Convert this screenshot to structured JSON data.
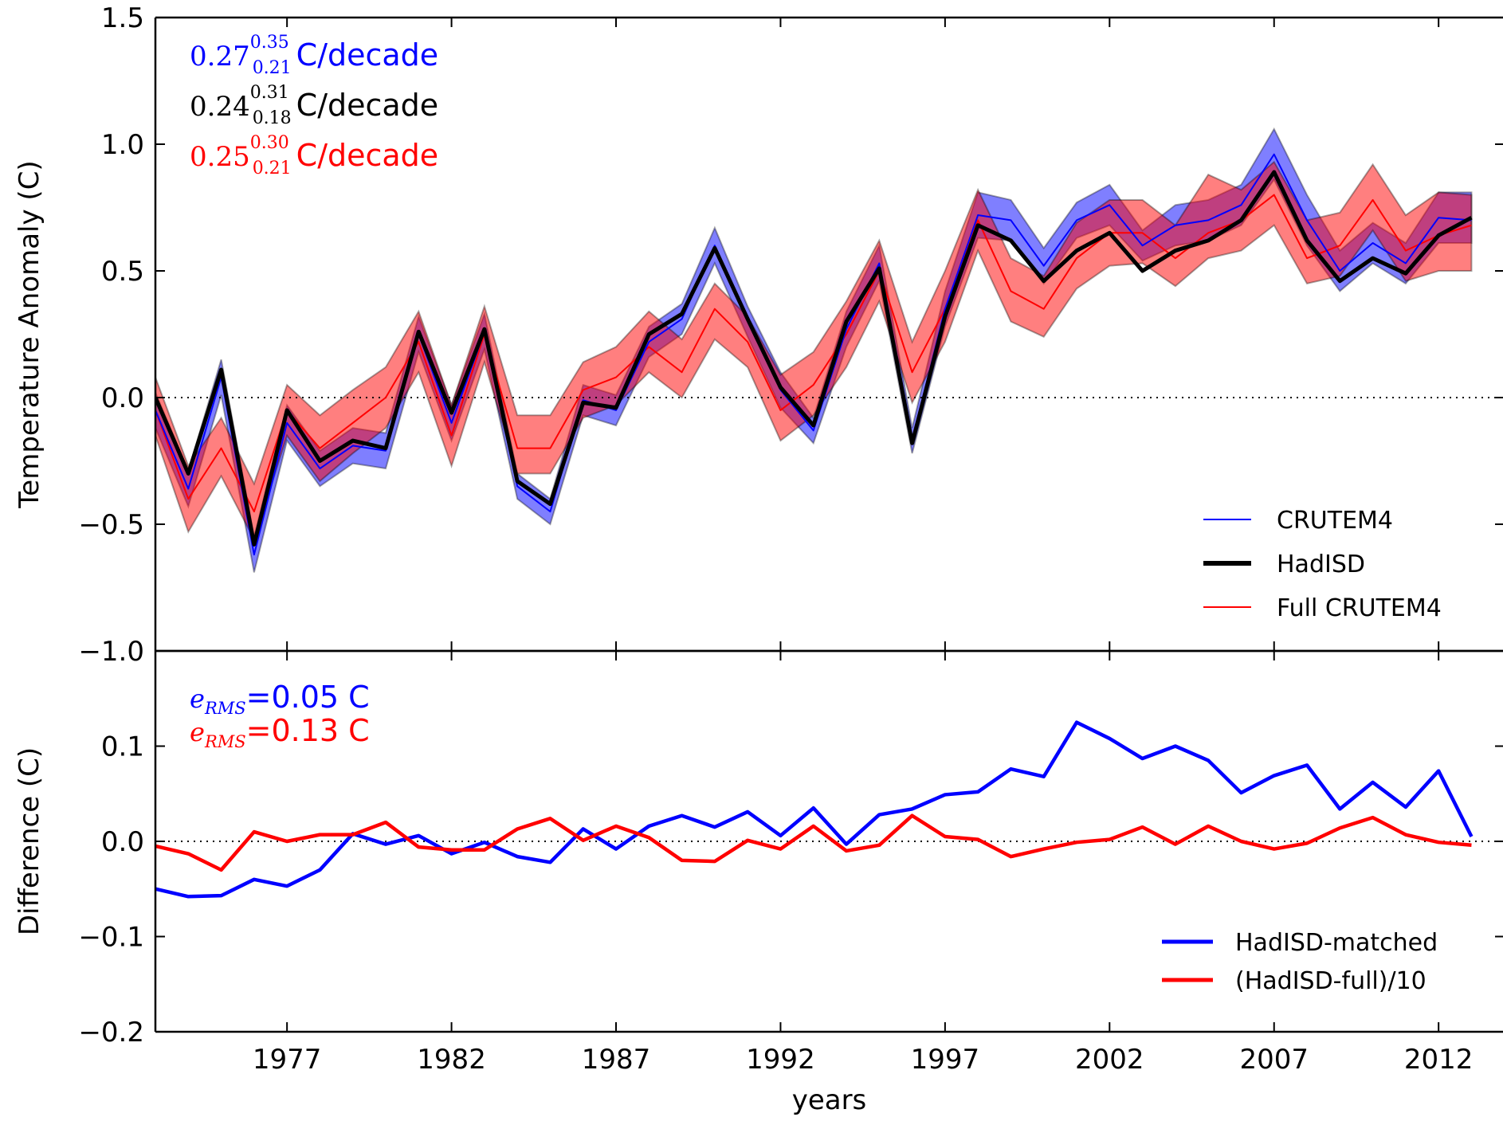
{
  "chart_data": [
    {
      "type": "line",
      "panel": "top",
      "ylabel": "Temperature Anomaly (C)",
      "xlabel": "",
      "ylim": [
        -1.0,
        1.5
      ],
      "yticks": [
        -1.0,
        -0.5,
        0.0,
        0.5,
        1.0,
        1.5
      ],
      "ytick_labels": [
        "−1.0",
        "−0.5",
        "0.0",
        "0.5",
        "1.0",
        "1.5"
      ],
      "xlim": [
        1973,
        2014.2
      ],
      "zero_line": true,
      "legend": {
        "placement": "lower-right",
        "entries": [
          {
            "label": "CRUTEM4",
            "color": "#0000ff",
            "style": "thin"
          },
          {
            "label": "HadISD",
            "color": "#000000",
            "style": "thick"
          },
          {
            "label": "Full CRUTEM4",
            "color": "#ff0000",
            "style": "thin"
          }
        ]
      },
      "annotations": [
        {
          "value": "0.27",
          "sup": "0.35",
          "sub": "0.21",
          "unit": "C/decade",
          "color": "#0000ff"
        },
        {
          "value": "0.24",
          "sup": "0.31",
          "sub": "0.18",
          "unit": "C/decade",
          "color": "#000000"
        },
        {
          "value": "0.25",
          "sup": "0.30",
          "sub": "0.21",
          "unit": "C/decade",
          "color": "#ff0000"
        }
      ],
      "x": [
        1973,
        1974,
        1975,
        1976,
        1977,
        1978,
        1979,
        1980,
        1981,
        1982,
        1983,
        1984,
        1985,
        1986,
        1987,
        1988,
        1989,
        1990,
        1991,
        1992,
        1993,
        1994,
        1995,
        1996,
        1997,
        1998,
        1999,
        2000,
        2001,
        2002,
        2003,
        2004,
        2005,
        2006,
        2007,
        2008,
        2009,
        2010,
        2011,
        2012,
        2013
      ],
      "series": [
        {
          "name": "CRUTEM4",
          "color": "#0000ff",
          "band_color": "#0000ff",
          "values": [
            -0.05,
            -0.36,
            0.08,
            -0.62,
            -0.1,
            -0.28,
            -0.19,
            -0.21,
            0.25,
            -0.1,
            0.26,
            -0.35,
            -0.45,
            -0.01,
            -0.05,
            0.22,
            0.31,
            0.6,
            0.3,
            0.03,
            -0.13,
            0.27,
            0.53,
            -0.17,
            0.35,
            0.72,
            0.7,
            0.52,
            0.7,
            0.76,
            0.6,
            0.68,
            0.7,
            0.76,
            0.96,
            0.7,
            0.5,
            0.61,
            0.53,
            0.71,
            0.7
          ],
          "lower": [
            -0.12,
            -0.43,
            0.01,
            -0.69,
            -0.17,
            -0.35,
            -0.26,
            -0.28,
            0.18,
            -0.17,
            0.19,
            -0.4,
            -0.5,
            -0.07,
            -0.11,
            0.16,
            0.25,
            0.53,
            0.24,
            -0.04,
            -0.18,
            0.2,
            0.46,
            -0.22,
            0.28,
            0.63,
            0.62,
            0.45,
            0.63,
            0.68,
            0.54,
            0.6,
            0.62,
            0.68,
            0.86,
            0.6,
            0.42,
            0.53,
            0.45,
            0.61,
            0.61
          ],
          "upper": [
            0.02,
            -0.29,
            0.15,
            -0.55,
            -0.03,
            -0.21,
            -0.12,
            -0.14,
            0.32,
            -0.03,
            0.33,
            -0.3,
            -0.4,
            0.05,
            0.01,
            0.28,
            0.37,
            0.67,
            0.36,
            0.1,
            -0.08,
            0.34,
            0.6,
            -0.12,
            0.42,
            0.81,
            0.78,
            0.59,
            0.77,
            0.84,
            0.66,
            0.76,
            0.78,
            0.84,
            1.06,
            0.8,
            0.58,
            0.69,
            0.61,
            0.81,
            0.81
          ]
        },
        {
          "name": "HadISD",
          "color": "#000000",
          "values": [
            0.0,
            -0.3,
            0.11,
            -0.58,
            -0.05,
            -0.25,
            -0.17,
            -0.2,
            0.26,
            -0.06,
            0.27,
            -0.33,
            -0.42,
            -0.02,
            -0.04,
            0.25,
            0.33,
            0.59,
            0.31,
            0.04,
            -0.11,
            0.3,
            0.51,
            -0.18,
            0.32,
            0.68,
            0.62,
            0.46,
            0.58,
            0.65,
            0.5,
            0.58,
            0.62,
            0.7,
            0.89,
            0.62,
            0.46,
            0.55,
            0.49,
            0.64,
            0.71
          ]
        },
        {
          "name": "Full CRUTEM4",
          "color": "#ff0000",
          "band_color": "#ff0000",
          "values": [
            -0.05,
            -0.4,
            -0.2,
            -0.45,
            -0.05,
            -0.2,
            -0.1,
            0.0,
            0.22,
            -0.15,
            0.25,
            -0.2,
            -0.2,
            0.03,
            0.08,
            0.2,
            0.1,
            0.35,
            0.22,
            -0.05,
            0.05,
            0.25,
            0.5,
            0.1,
            0.35,
            0.7,
            0.42,
            0.35,
            0.55,
            0.65,
            0.65,
            0.55,
            0.65,
            0.7,
            0.8,
            0.55,
            0.6,
            0.78,
            0.58,
            0.64,
            0.68
          ],
          "lower": [
            -0.15,
            -0.53,
            -0.31,
            -0.56,
            -0.15,
            -0.33,
            -0.22,
            -0.12,
            0.1,
            -0.27,
            0.14,
            -0.3,
            -0.3,
            -0.08,
            -0.03,
            0.1,
            0.0,
            0.23,
            0.12,
            -0.17,
            -0.07,
            0.12,
            0.38,
            -0.02,
            0.22,
            0.58,
            0.3,
            0.24,
            0.43,
            0.52,
            0.53,
            0.44,
            0.55,
            0.58,
            0.68,
            0.45,
            0.48,
            0.66,
            0.46,
            0.5,
            0.5
          ],
          "upper": [
            0.08,
            -0.27,
            -0.08,
            -0.34,
            0.05,
            -0.07,
            0.03,
            0.12,
            0.34,
            -0.03,
            0.36,
            -0.07,
            -0.07,
            0.14,
            0.2,
            0.34,
            0.23,
            0.45,
            0.32,
            0.09,
            0.18,
            0.38,
            0.62,
            0.22,
            0.5,
            0.82,
            0.55,
            0.48,
            0.69,
            0.78,
            0.78,
            0.68,
            0.88,
            0.82,
            0.93,
            0.7,
            0.73,
            0.92,
            0.72,
            0.81,
            0.8
          ]
        }
      ]
    },
    {
      "type": "line",
      "panel": "bottom",
      "ylabel": "Difference (C)",
      "xlabel": "years",
      "ylim": [
        -0.2,
        0.2
      ],
      "yticks": [
        -0.2,
        -0.1,
        0.0,
        0.1
      ],
      "ytick_labels": [
        "−0.2",
        "−0.1",
        "0.0",
        "0.1"
      ],
      "xlim": [
        1973,
        2014.2
      ],
      "xticks": [
        1977,
        1982,
        1987,
        1992,
        1997,
        2002,
        2007,
        2012
      ],
      "xtick_labels": [
        "1977",
        "1982",
        "1987",
        "1992",
        "1997",
        "2002",
        "2007",
        "2012"
      ],
      "zero_line": true,
      "legend": {
        "placement": "lower-right",
        "entries": [
          {
            "label": "HadISD-matched",
            "color": "#0000ff"
          },
          {
            "label": "(HadISD-full)/10",
            "color": "#ff0000"
          }
        ]
      },
      "annotations": [
        {
          "symbol": "e",
          "sub": "RMS",
          "text": "=0.05 C",
          "color": "#0000ff"
        },
        {
          "symbol": "e",
          "sub": "RMS",
          "text": "=0.13 C",
          "color": "#ff0000"
        }
      ],
      "x": [
        1973,
        1974,
        1975,
        1976,
        1977,
        1978,
        1979,
        1980,
        1981,
        1982,
        1983,
        1984,
        1985,
        1986,
        1987,
        1988,
        1989,
        1990,
        1991,
        1992,
        1993,
        1994,
        1995,
        1996,
        1997,
        1998,
        1999,
        2000,
        2001,
        2002,
        2003,
        2004,
        2005,
        2006,
        2007,
        2008,
        2009,
        2010,
        2011,
        2012,
        2013
      ],
      "series": [
        {
          "name": "HadISD-matched",
          "color": "#0000ff",
          "values": [
            -0.05,
            -0.058,
            -0.057,
            -0.04,
            -0.047,
            -0.03,
            0.008,
            -0.003,
            0.006,
            -0.013,
            -0.001,
            -0.016,
            -0.022,
            0.013,
            -0.008,
            0.016,
            0.027,
            0.015,
            0.031,
            0.006,
            0.035,
            -0.003,
            0.028,
            0.034,
            0.049,
            0.052,
            0.076,
            0.068,
            0.125,
            0.108,
            0.087,
            0.1,
            0.085,
            0.051,
            0.069,
            0.08,
            0.034,
            0.062,
            0.036,
            0.074,
            0.005
          ]
        },
        {
          "name": "(HadISD-full)/10",
          "color": "#ff0000",
          "values": [
            -0.005,
            -0.013,
            -0.03,
            0.01,
            0.0,
            0.007,
            0.007,
            0.02,
            -0.006,
            -0.009,
            -0.009,
            0.013,
            0.024,
            0.001,
            0.016,
            0.004,
            -0.02,
            -0.021,
            0.001,
            -0.008,
            0.016,
            -0.01,
            -0.004,
            0.027,
            0.005,
            0.002,
            -0.016,
            -0.008,
            -0.001,
            0.002,
            0.015,
            -0.003,
            0.016,
            0.0,
            -0.008,
            -0.002,
            0.014,
            0.025,
            0.007,
            -0.001,
            -0.004
          ]
        }
      ]
    }
  ]
}
